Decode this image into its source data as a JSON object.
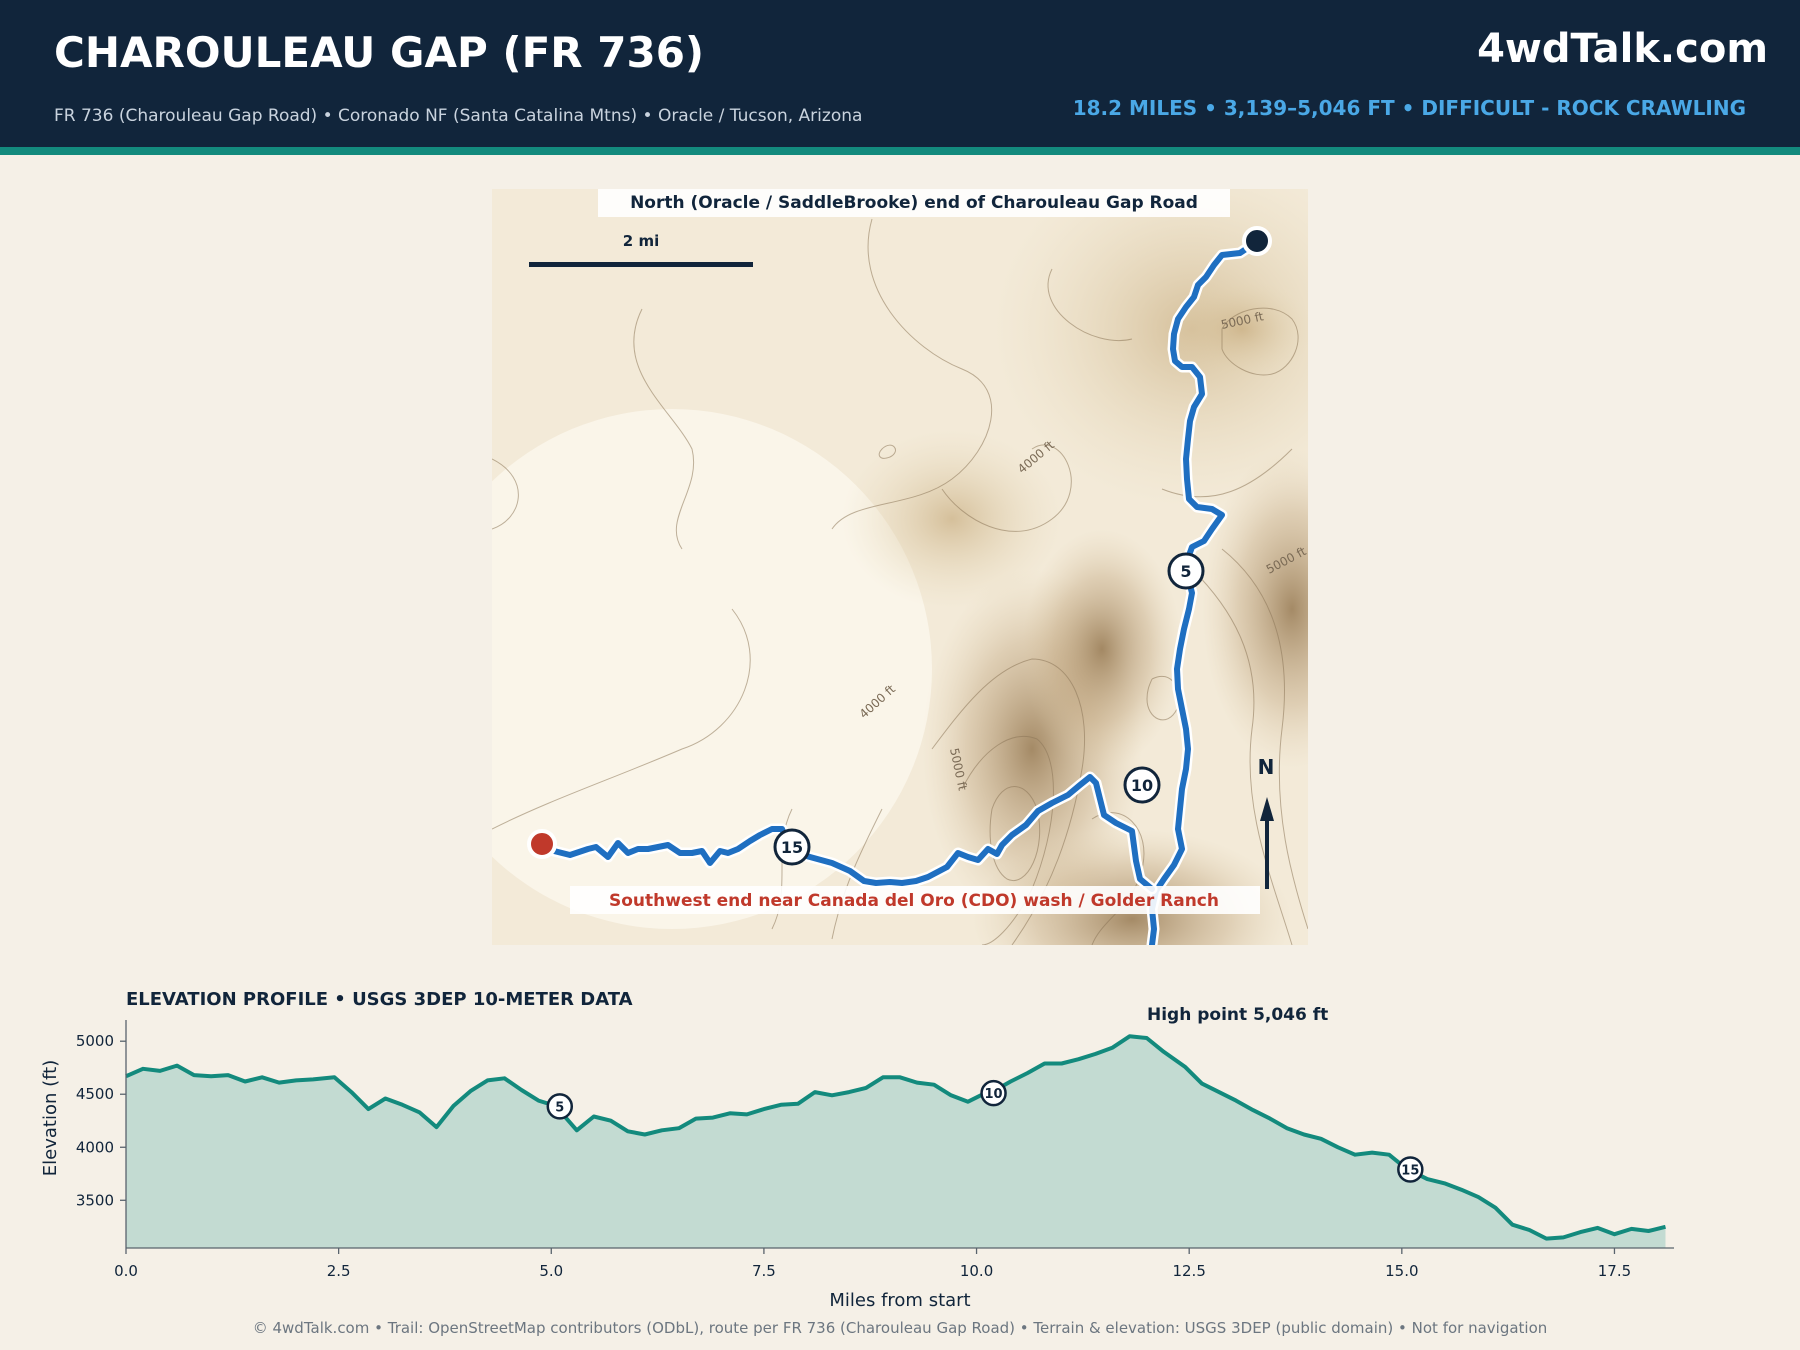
{
  "header": {
    "title": "CHAROULEAU GAP (FR 736)",
    "subtitle": "FR 736 (Charouleau Gap Road)  •  Coronado NF (Santa Catalina Mtns)  •  Oracle / Tucson, Arizona",
    "brand": "4wdTalk.com",
    "stats": "18.2 MILES  •  3,139–5,046 FT  •  DIFFICULT - ROCK CRAWLING"
  },
  "map": {
    "north_label": "North (Oracle / SaddleBrooke) end of Charouleau Gap Road",
    "south_label": "Southwest end near Canada del Oro (CDO) wash / Golder Ranch",
    "scale_label": "2 mi",
    "compass_label": "N",
    "contour_labels": [
      "5000 ft",
      "4000 ft",
      "5000 ft",
      "4000 ft",
      "5000 ft"
    ],
    "mile_markers": [
      "5",
      "10",
      "15"
    ],
    "colors": {
      "route": "#1f6fc1",
      "start": "#11253b",
      "end": "#c0392b"
    }
  },
  "elevation": {
    "title": "ELEVATION PROFILE  •  USGS 3DEP 10-METER DATA",
    "ylabel": "Elevation (ft)",
    "xlabel": "Miles from start",
    "high_point_label": "High point 5,046 ft"
  },
  "chart_data": {
    "type": "area",
    "xlabel": "Miles from start",
    "ylabel": "Elevation (ft)",
    "xlim": [
      0,
      18.2
    ],
    "ylim": [
      3050,
      5200
    ],
    "xticks": [
      0,
      2.5,
      5,
      7.5,
      10,
      12.5,
      15,
      17.5
    ],
    "xtick_labels": [
      "0.0",
      "2.5",
      "5.0",
      "7.5",
      "10.0",
      "12.5",
      "15.0",
      "17.5"
    ],
    "yticks": [
      3500,
      4000,
      4500,
      5000
    ],
    "ytick_labels": [
      "3500",
      "4000",
      "4500",
      "5000"
    ],
    "grid": false,
    "color": "#138a7d",
    "series": [
      {
        "x": [
          0,
          0.2,
          0.4,
          0.6,
          0.8,
          1.0,
          1.2,
          1.4,
          1.6,
          1.8,
          2.0,
          2.2,
          2.45,
          2.65,
          2.85,
          3.05,
          3.25,
          3.45,
          3.65,
          3.85,
          4.05,
          4.25,
          4.45,
          4.65,
          4.85,
          5.05,
          5.3,
          5.5,
          5.7,
          5.9,
          6.1,
          6.3,
          6.5,
          6.7,
          6.9,
          7.1,
          7.3,
          7.5,
          7.7,
          7.9,
          8.1,
          8.3,
          8.5,
          8.7,
          8.9,
          9.1,
          9.3,
          9.5,
          9.7,
          9.9,
          10.05,
          10.2,
          10.4,
          10.6,
          10.8,
          11.0,
          11.2,
          11.4,
          11.6,
          11.8,
          12.0,
          12.2,
          12.45,
          12.65,
          12.85,
          13.05,
          13.25,
          13.45,
          13.65,
          13.85,
          14.05,
          14.25,
          14.45,
          14.65,
          14.85,
          15.05,
          15.3,
          15.5,
          15.7,
          15.9,
          16.1,
          16.3,
          16.5,
          16.7,
          16.9,
          17.1,
          17.3,
          17.5,
          17.7,
          17.9,
          18.1
        ],
        "y": [
          4670,
          4740,
          4720,
          4770,
          4680,
          4670,
          4680,
          4620,
          4660,
          4610,
          4630,
          4640,
          4660,
          4520,
          4360,
          4460,
          4400,
          4330,
          4190,
          4390,
          4530,
          4630,
          4650,
          4540,
          4440,
          4390,
          4160,
          4290,
          4250,
          4150,
          4120,
          4160,
          4180,
          4270,
          4280,
          4320,
          4310,
          4360,
          4400,
          4410,
          4520,
          4490,
          4520,
          4560,
          4660,
          4660,
          4610,
          4590,
          4490,
          4430,
          4490,
          4530,
          4620,
          4700,
          4790,
          4790,
          4830,
          4880,
          4940,
          5046,
          5030,
          4900,
          4760,
          4600,
          4520,
          4440,
          4350,
          4270,
          4180,
          4120,
          4080,
          4000,
          3930,
          3950,
          3930,
          3800,
          3700,
          3660,
          3600,
          3530,
          3430,
          3270,
          3220,
          3139,
          3150,
          3200,
          3240,
          3180,
          3230,
          3210,
          3250
        ]
      }
    ],
    "markers": [
      {
        "label": "5",
        "x": 5.1,
        "y": 4385
      },
      {
        "label": "10",
        "x": 10.2,
        "y": 4510
      },
      {
        "label": "15",
        "x": 15.1,
        "y": 3790
      }
    ],
    "annotations": [
      {
        "text": "High point 5,046 ft",
        "x": 11.85,
        "y": 5046
      }
    ]
  },
  "footer": {
    "text": "© 4wdTalk.com  •  Trail: OpenStreetMap contributors (ODbL), route per FR 736 (Charouleau Gap Road)  •  Terrain & elevation: USGS 3DEP (public domain)  •  Not for navigation"
  }
}
